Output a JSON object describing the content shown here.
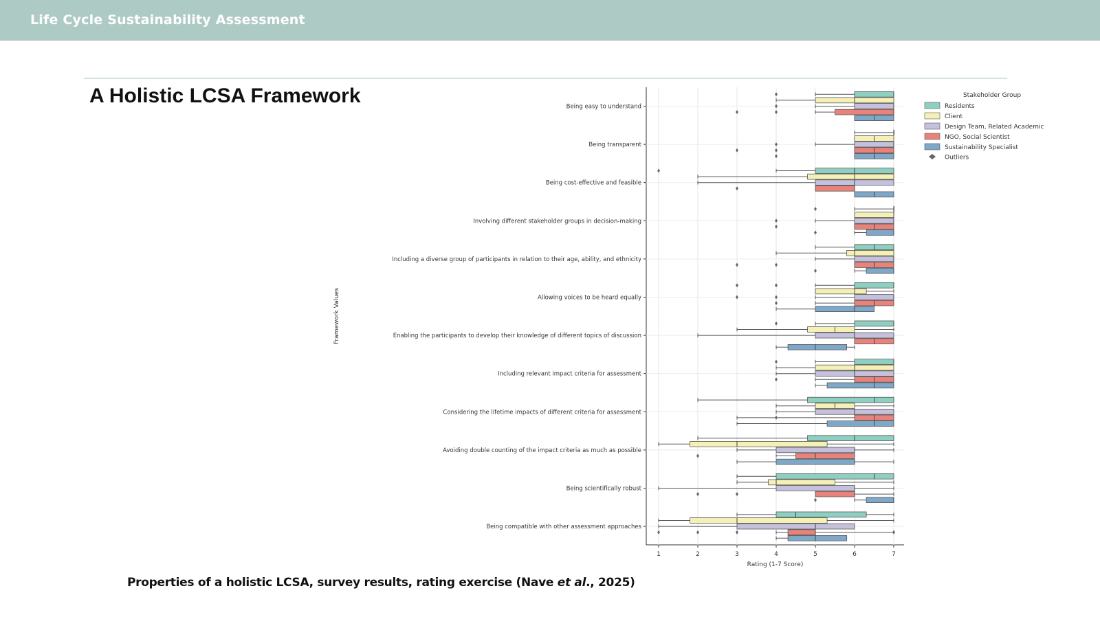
{
  "header": {
    "title": "Life Cycle Sustainability Assessment"
  },
  "slide": {
    "title": "A Holistic LCSA Framework"
  },
  "caption": {
    "part1": "Properties of a holistic LCSA, survey results, rating exercise (Nave ",
    "italic": "et al",
    "part2": "., 2025)"
  },
  "chart_data": {
    "type": "boxplot",
    "orientation": "horizontal",
    "xlabel": "Rating (1-7 Score)",
    "ylabel": "Framework Values",
    "xlim": [
      1,
      7
    ],
    "xticks": [
      1,
      2,
      3,
      4,
      5,
      6,
      7
    ],
    "grid": true,
    "legend": {
      "title": "Stakeholder Group",
      "position": "top-right",
      "outliers_label": "Outliers"
    },
    "series": [
      {
        "name": "Residents",
        "color": "#8ecfc1"
      },
      {
        "name": "Client",
        "color": "#f5f1b6"
      },
      {
        "name": "Design Team, Related Academic",
        "color": "#c5c0dc"
      },
      {
        "name": "NGO, Social Scientist",
        "color": "#e8837b"
      },
      {
        "name": "Sustainability Specialist",
        "color": "#7fa8c8"
      }
    ],
    "categories": [
      "Being easy to understand",
      "Being transparent",
      "Being cost-effective and feasible",
      "Involving different stakeholder  groups in decision-making",
      "Including a diverse group of participants in relation to their age, ability, and ethnicity",
      "Allowing voices to be heard equally",
      "Enabling the participants to develop their knowledge of different topics of discussion",
      "Including relevant impact criteria for assessment",
      "Considering the lifetime impacts of different criteria for assessment",
      "Avoiding double counting of the impact criteria as much as possible",
      "Being  scientifically robust",
      "Being compatible with other assessment approaches"
    ],
    "boxes": [
      [
        [
          5,
          6,
          7,
          7,
          7,
          [
            4
          ]
        ],
        [
          4,
          5,
          6,
          7,
          7,
          []
        ],
        [
          5,
          6,
          7,
          7,
          7,
          [
            4
          ]
        ],
        [
          5,
          5.5,
          7,
          7,
          7,
          [
            3,
            4
          ]
        ],
        [
          6,
          6,
          6.5,
          7,
          7,
          []
        ]
      ],
      [
        [
          6,
          7,
          7,
          7,
          7,
          []
        ],
        [
          6,
          6,
          6.5,
          7,
          7,
          []
        ],
        [
          5,
          6,
          7,
          7,
          7,
          [
            4
          ]
        ],
        [
          6,
          6,
          6.5,
          7,
          7,
          [
            3,
            4
          ]
        ],
        [
          6,
          6,
          6.5,
          7,
          7,
          [
            4
          ]
        ]
      ],
      [
        [
          4,
          5,
          6,
          7,
          7,
          [
            1
          ]
        ],
        [
          2,
          4.8,
          6,
          7,
          7,
          []
        ],
        [
          2,
          5,
          6,
          7,
          7,
          []
        ],
        [
          5,
          5,
          6,
          6,
          6,
          [
            3
          ]
        ],
        [
          6,
          6,
          6.5,
          7,
          7,
          []
        ]
      ],
      [
        [
          6,
          7,
          7,
          7,
          7,
          [
            5
          ]
        ],
        [
          6,
          6,
          7,
          7,
          7,
          []
        ],
        [
          5,
          6,
          7,
          7,
          7,
          [
            4
          ]
        ],
        [
          6,
          6,
          6.5,
          7,
          7,
          [
            4
          ]
        ],
        [
          6,
          6.3,
          7,
          7,
          7,
          [
            5
          ]
        ]
      ],
      [
        [
          5,
          6,
          6.5,
          7,
          7,
          []
        ],
        [
          4,
          5.8,
          6,
          7,
          7,
          []
        ],
        [
          5,
          6,
          7,
          7,
          7,
          []
        ],
        [
          6,
          6,
          6.5,
          7,
          7,
          [
            3,
            4
          ]
        ],
        [
          6,
          6.3,
          7,
          7,
          7,
          [
            5
          ]
        ]
      ],
      [
        [
          5,
          6,
          7,
          7,
          7,
          [
            3,
            4
          ]
        ],
        [
          5,
          5,
          6,
          6.3,
          7,
          []
        ],
        [
          5,
          6,
          7,
          7,
          7,
          [
            3,
            4
          ]
        ],
        [
          5,
          6,
          6.5,
          7,
          7,
          [
            4
          ]
        ],
        [
          4,
          5,
          6,
          6.5,
          6.5,
          []
        ]
      ],
      [
        [
          5,
          6,
          7,
          7,
          7,
          [
            4
          ]
        ],
        [
          3,
          4.8,
          5.5,
          6,
          7,
          []
        ],
        [
          2,
          5,
          6,
          7,
          7,
          []
        ],
        [
          6,
          6,
          6.5,
          7,
          7,
          []
        ],
        [
          4,
          4.3,
          5,
          5.8,
          6,
          []
        ]
      ],
      [
        [
          5,
          6,
          7,
          7,
          7,
          [
            4
          ]
        ],
        [
          4,
          5,
          6,
          7,
          7,
          []
        ],
        [
          4,
          5,
          6,
          7,
          7,
          []
        ],
        [
          5,
          6,
          6.5,
          7,
          7,
          [
            4
          ]
        ],
        [
          5,
          5.3,
          6.5,
          7,
          7,
          []
        ]
      ],
      [
        [
          2,
          4.8,
          6.5,
          7,
          7,
          []
        ],
        [
          4,
          5,
          5.5,
          6,
          7,
          []
        ],
        [
          4,
          5,
          6,
          7,
          7,
          []
        ],
        [
          3,
          6,
          6.5,
          7,
          7,
          [
            4
          ]
        ],
        [
          3,
          5.3,
          6.5,
          7,
          7,
          []
        ]
      ],
      [
        [
          2,
          4.8,
          6,
          7,
          7,
          []
        ],
        [
          1,
          1.8,
          3,
          5.3,
          7,
          []
        ],
        [
          3,
          4,
          6,
          6,
          7,
          []
        ],
        [
          4,
          4.5,
          5,
          6,
          6,
          [
            2
          ]
        ],
        [
          3,
          4,
          6,
          6,
          7,
          []
        ]
      ],
      [
        [
          3,
          4,
          6.5,
          7,
          7,
          []
        ],
        [
          3,
          3.8,
          4,
          5.5,
          7,
          []
        ],
        [
          1,
          4,
          6,
          6,
          7,
          []
        ],
        [
          5,
          5,
          6,
          6,
          7,
          [
            2,
            3
          ]
        ],
        [
          6,
          6.3,
          7,
          7,
          7,
          [
            5
          ]
        ]
      ],
      [
        [
          3,
          4,
          4.5,
          6.3,
          7,
          []
        ],
        [
          1,
          1.8,
          3,
          5.3,
          7,
          []
        ],
        [
          1,
          3,
          5,
          6,
          6,
          []
        ],
        [
          4,
          4.3,
          5,
          5,
          7,
          [
            1,
            2,
            3,
            7
          ]
        ],
        [
          4,
          4.3,
          5,
          5.8,
          5.8,
          []
        ]
      ]
    ]
  }
}
